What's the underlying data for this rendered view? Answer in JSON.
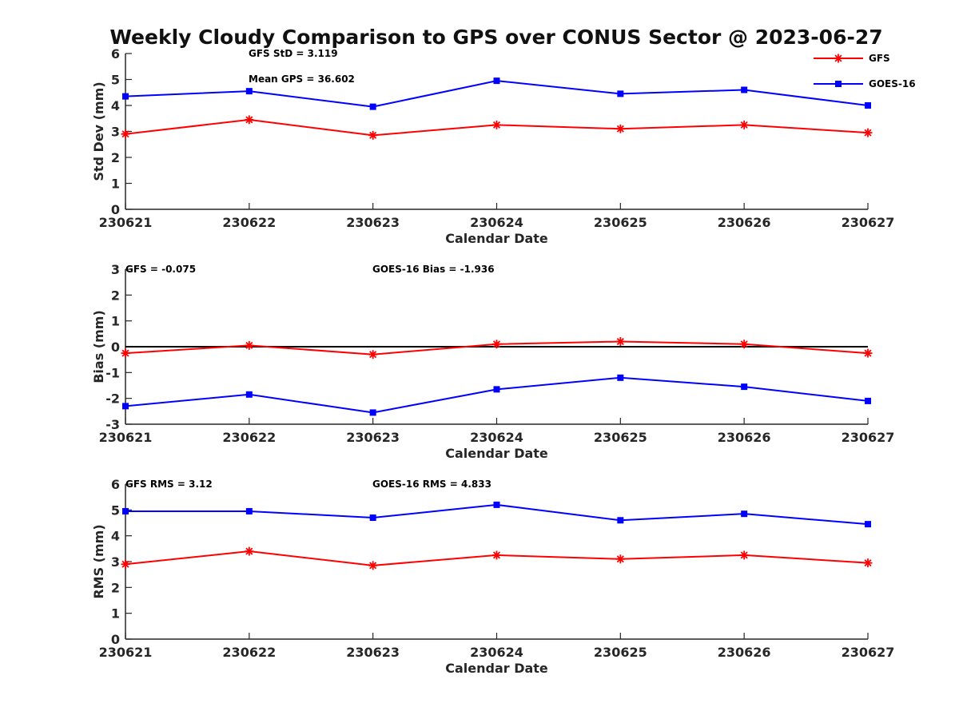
{
  "figure": {
    "title": "Weekly Cloudy Comparison to GPS over CONUS Sector @ 2023-06-27",
    "legend": [
      {
        "name": "GFS",
        "color": "#ff0000",
        "marker": "asterisk"
      },
      {
        "name": "GOES-16",
        "color": "#0000ff",
        "marker": "square"
      }
    ],
    "colors": {
      "gfs": "#ff0000",
      "goes16": "#0000ff",
      "zero_line": "#000000",
      "axes": "#262626"
    }
  },
  "chart_data": [
    {
      "type": "line",
      "categories": [
        "230621",
        "230622",
        "230623",
        "230624",
        "230625",
        "230626",
        "230627"
      ],
      "xlabel": "Calendar Date",
      "ylabel": "Std Dev (mm)",
      "ylim": [
        0,
        6
      ],
      "yticks": [
        "0",
        "1",
        "2",
        "3",
        "4",
        "5",
        "6"
      ],
      "grid": false,
      "legend_position": "top-right",
      "annotations": [
        "GFS StD = 3.119",
        "Mean GPS = 36.602"
      ],
      "series": [
        {
          "name": "GFS",
          "color": "#ff0000",
          "marker": "asterisk",
          "values": [
            2.9,
            3.45,
            2.85,
            3.25,
            3.1,
            3.25,
            2.95
          ]
        },
        {
          "name": "GOES-16",
          "color": "#0000ff",
          "marker": "square",
          "values": [
            4.35,
            4.55,
            3.95,
            4.95,
            4.45,
            4.6,
            4.0
          ]
        }
      ]
    },
    {
      "type": "line",
      "categories": [
        "230621",
        "230622",
        "230623",
        "230624",
        "230625",
        "230626",
        "230627"
      ],
      "xlabel": "Calendar Date",
      "ylabel": "Bias (mm)",
      "ylim": [
        -3,
        3
      ],
      "yticks": [
        "-3",
        "-2",
        "-1",
        "0",
        "1",
        "2",
        "3"
      ],
      "grid": false,
      "zero_line": true,
      "annotations": [
        "GFS = -0.075",
        "GOES-16 Bias  = -1.936"
      ],
      "series": [
        {
          "name": "GFS",
          "color": "#ff0000",
          "marker": "asterisk",
          "values": [
            -0.25,
            0.05,
            -0.3,
            0.1,
            0.2,
            0.1,
            -0.25
          ]
        },
        {
          "name": "GOES-16",
          "color": "#0000ff",
          "marker": "square",
          "values": [
            -2.3,
            -1.85,
            -2.55,
            -1.65,
            -1.2,
            -1.55,
            -2.1
          ]
        }
      ]
    },
    {
      "type": "line",
      "categories": [
        "230621",
        "230622",
        "230623",
        "230624",
        "230625",
        "230626",
        "230627"
      ],
      "xlabel": "Calendar Date",
      "ylabel": "RMS (mm)",
      "ylim": [
        0,
        6
      ],
      "yticks": [
        "0",
        "1",
        "2",
        "3",
        "4",
        "5",
        "6"
      ],
      "grid": false,
      "annotations": [
        "GFS RMS = 3.12",
        "GOES-16 RMS = 4.833"
      ],
      "series": [
        {
          "name": "GFS",
          "color": "#ff0000",
          "marker": "asterisk",
          "values": [
            2.9,
            3.4,
            2.85,
            3.25,
            3.1,
            3.25,
            2.95
          ]
        },
        {
          "name": "GOES-16",
          "color": "#0000ff",
          "marker": "square",
          "values": [
            4.95,
            4.95,
            4.7,
            5.2,
            4.6,
            4.85,
            4.45
          ]
        }
      ]
    }
  ]
}
